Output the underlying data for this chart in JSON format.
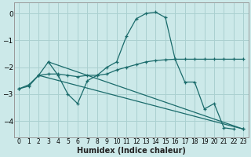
{
  "xlabel": "Humidex (Indice chaleur)",
  "xlim": [
    -0.5,
    23.5
  ],
  "ylim": [
    -4.6,
    0.4
  ],
  "yticks": [
    0,
    -1,
    -2,
    -3,
    -4
  ],
  "xticks": [
    0,
    1,
    2,
    3,
    4,
    5,
    6,
    7,
    8,
    9,
    10,
    11,
    12,
    13,
    14,
    15,
    16,
    17,
    18,
    19,
    20,
    21,
    22,
    23
  ],
  "bg_color": "#cce9e9",
  "grid_color": "#aad0d0",
  "line_color": "#1a6b6b",
  "series1_x": [
    0,
    1,
    2,
    3,
    4,
    5,
    6,
    7,
    8,
    9,
    10,
    11,
    12,
    13,
    14,
    15,
    16,
    17,
    18,
    19,
    20,
    21,
    22
  ],
  "series1_y": [
    -2.8,
    -2.7,
    -2.3,
    -1.8,
    -2.3,
    -3.0,
    -3.35,
    -2.5,
    -2.3,
    -2.0,
    -1.8,
    -0.85,
    -0.2,
    0.0,
    0.05,
    -0.15,
    -1.7,
    -2.55,
    -2.55,
    -3.55,
    -3.35,
    -4.25,
    -4.3
  ],
  "series2_x": [
    0,
    1,
    2,
    3,
    4,
    5,
    6,
    7,
    8,
    9,
    10,
    11,
    12,
    13,
    14,
    15,
    16,
    17,
    18,
    19,
    20,
    21,
    22,
    23
  ],
  "series2_y": [
    -2.8,
    -2.65,
    -2.3,
    -2.25,
    -2.25,
    -2.3,
    -2.35,
    -2.3,
    -2.3,
    -2.25,
    -2.1,
    -2.0,
    -1.9,
    -1.8,
    -1.75,
    -1.72,
    -1.7,
    -1.7,
    -1.7,
    -1.7,
    -1.7,
    -1.7,
    -1.7,
    -1.7
  ],
  "series3_x": [
    2,
    23
  ],
  "series3_y": [
    -2.3,
    -4.3
  ],
  "series4_x": [
    3,
    23
  ],
  "series4_y": [
    -1.8,
    -4.3
  ]
}
